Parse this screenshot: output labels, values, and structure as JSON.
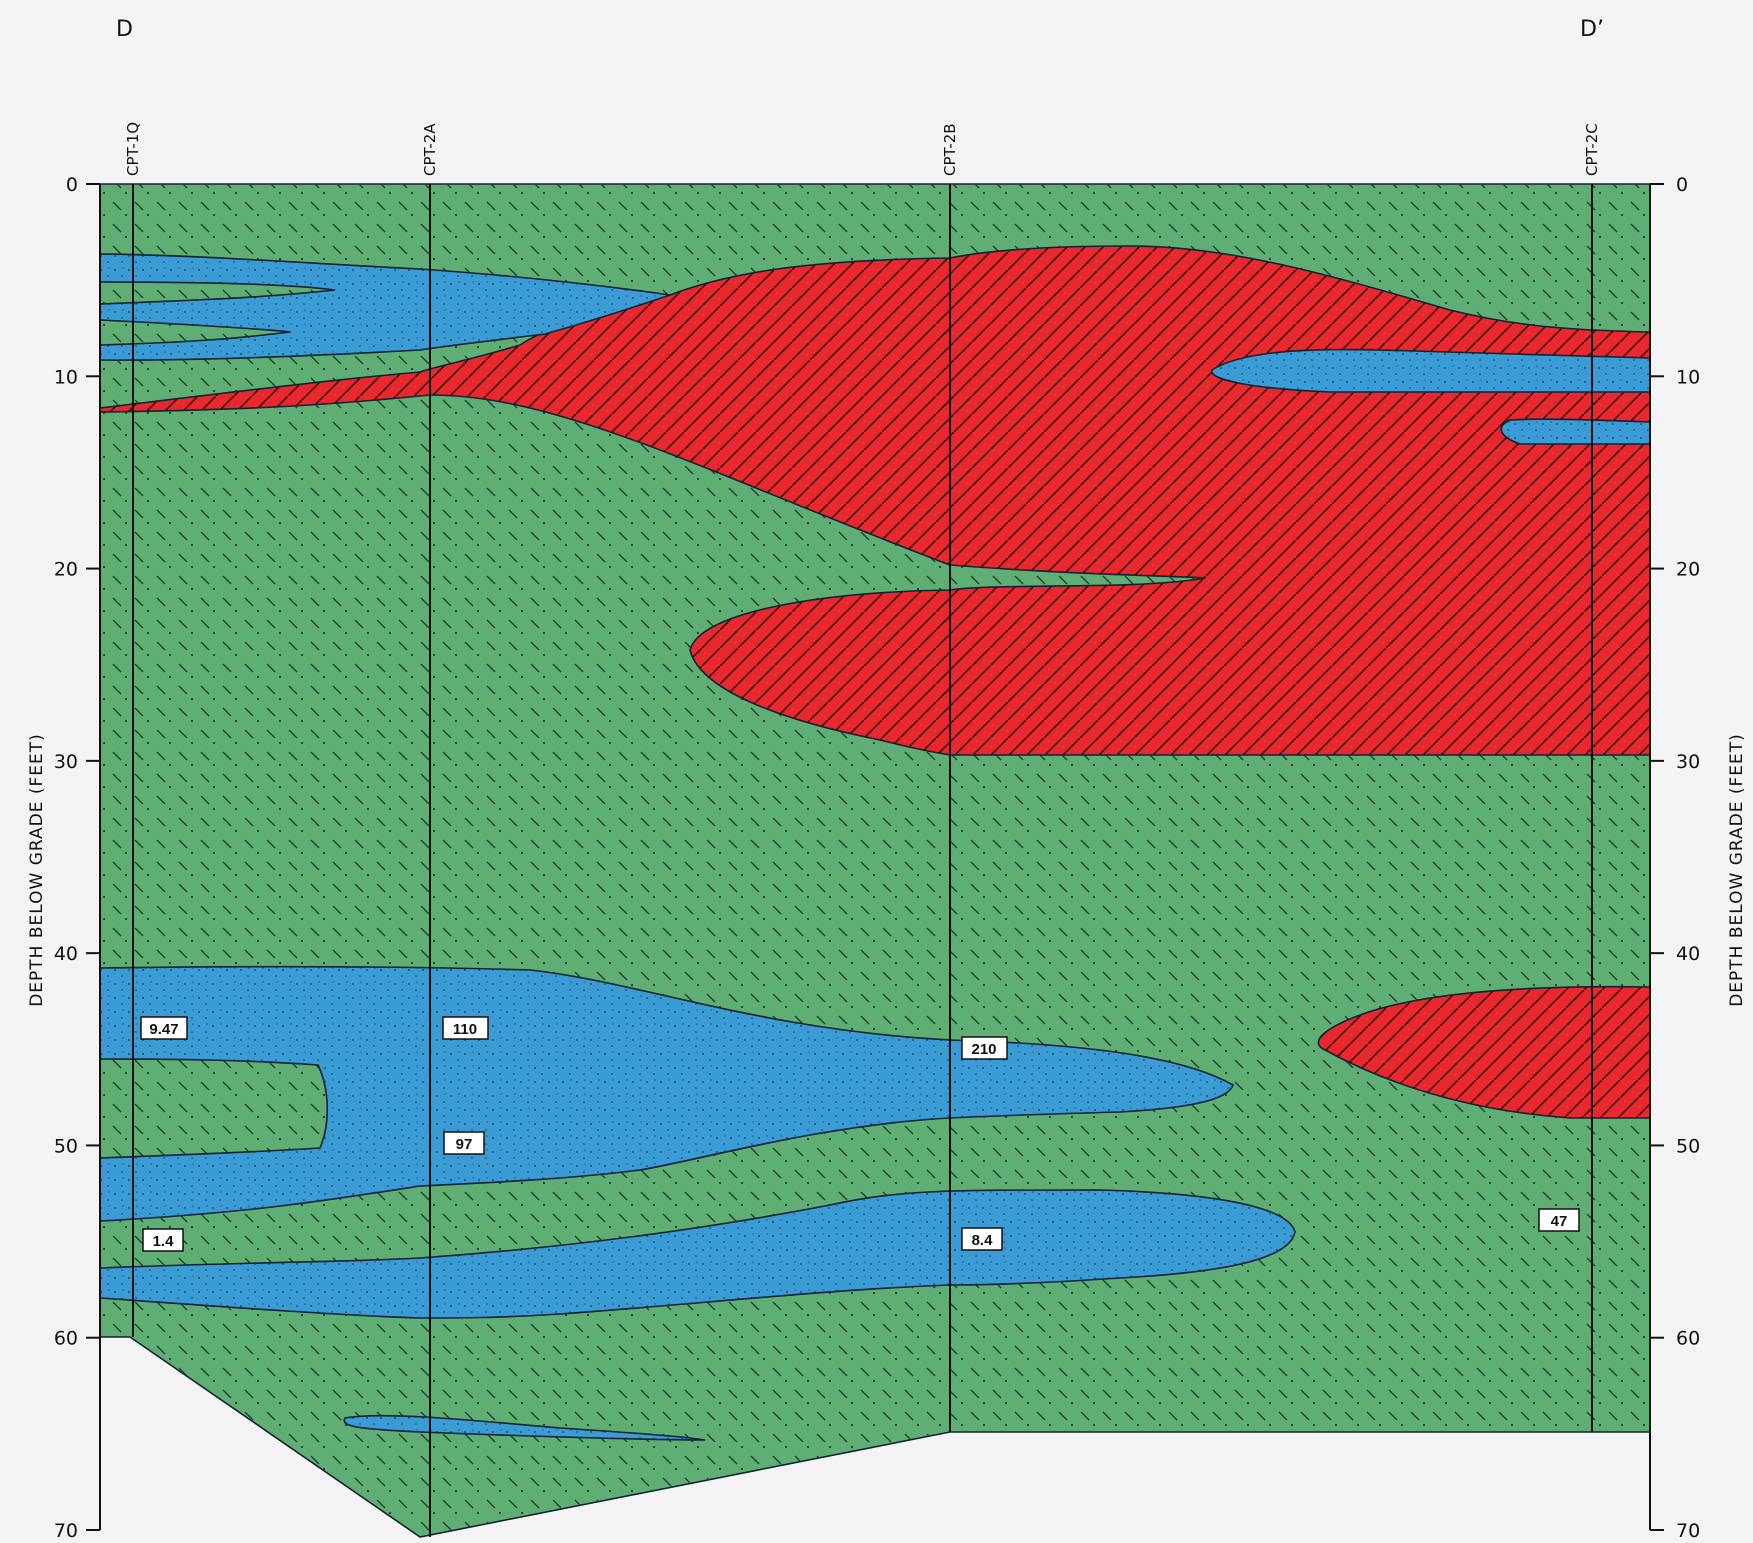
{
  "section": {
    "start_label": "D",
    "end_label": "D’",
    "axis_title": "DEPTH BELOW GRADE (FEET)"
  },
  "depth_axis": {
    "ticks": [
      "0",
      "10",
      "20",
      "30",
      "40",
      "50",
      "60",
      "70"
    ],
    "min": 0,
    "max": 70
  },
  "borings": [
    {
      "name": "CPT-1Q",
      "depth_ft": 60
    },
    {
      "name": "CPT-2A",
      "depth_ft": 70
    },
    {
      "name": "CPT-2B",
      "depth_ft": 65
    },
    {
      "name": "CPT-2C",
      "depth_ft": 65
    }
  ],
  "values": [
    "9.47",
    "110",
    "210",
    "97",
    "1.4",
    "8.4",
    "47"
  ],
  "colors": {
    "green_layer": "#5fae74",
    "blue_layer": "#3a9bd5",
    "red_layer": "#e8282c"
  }
}
